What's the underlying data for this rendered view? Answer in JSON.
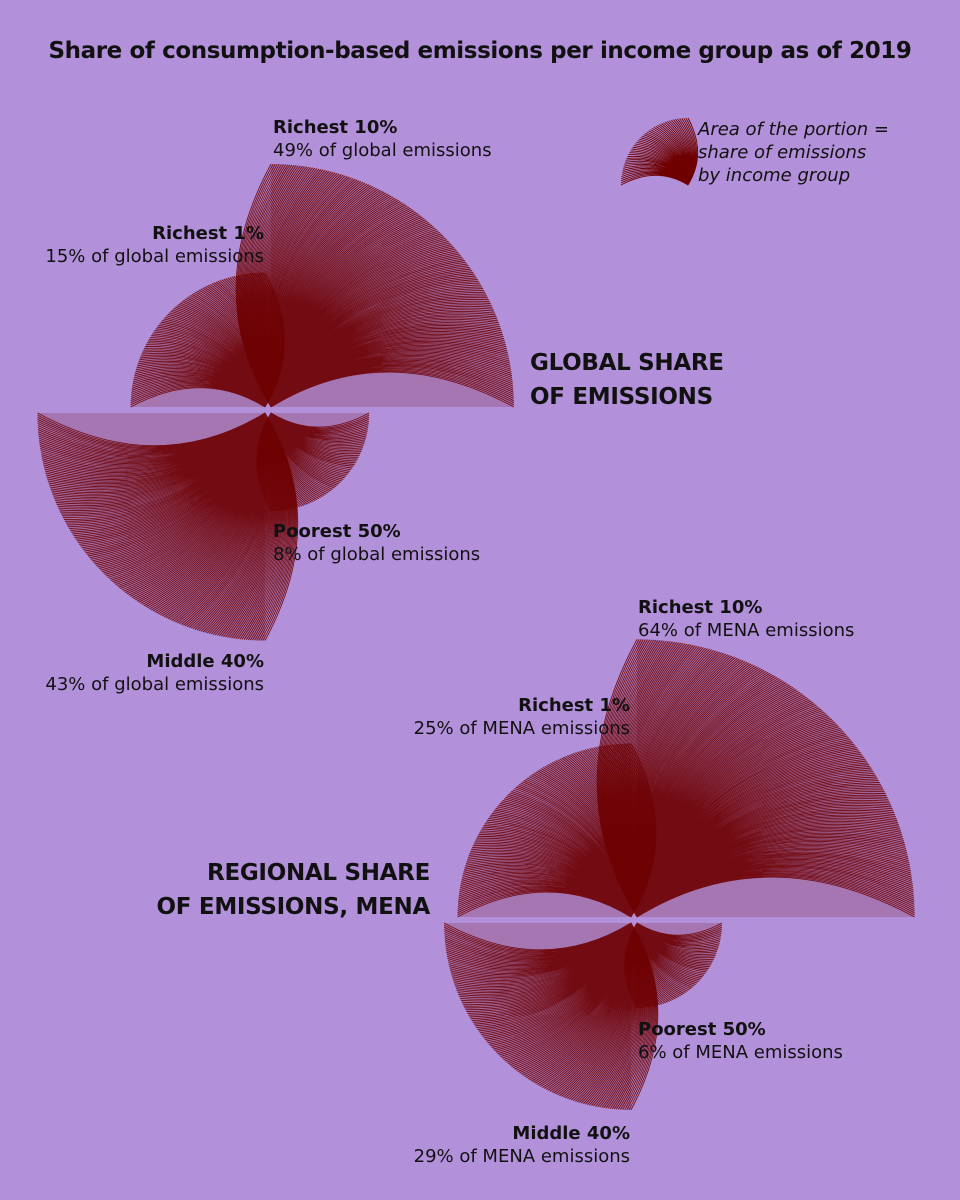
{
  "title": "Share of consumption-based emissions per income group as of 2019",
  "legend": {
    "lines": [
      "Area of the portion =",
      "share of emissions",
      "by income group"
    ]
  },
  "colors": {
    "background": "#b391da",
    "fan": "#6e0000",
    "text": "#111111"
  },
  "chart_data": [
    {
      "type": "pie",
      "heading": [
        "GLOBAL SHARE",
        "OF EMISSIONS"
      ],
      "groups": [
        {
          "label": "Richest 10%",
          "value": 49,
          "value_text": "49% of global emissions",
          "quadrant": "top-right"
        },
        {
          "label": "Richest 1%",
          "value": 15,
          "value_text": "15% of global emissions",
          "quadrant": "top-left"
        },
        {
          "label": "Middle 40%",
          "value": 43,
          "value_text": "43% of global emissions",
          "quadrant": "bottom-left"
        },
        {
          "label": "Poorest 50%",
          "value": 8,
          "value_text": "8% of global emissions",
          "quadrant": "bottom-right"
        }
      ]
    },
    {
      "type": "pie",
      "heading": [
        "REGIONAL SHARE",
        "OF EMISSIONS, MENA"
      ],
      "groups": [
        {
          "label": "Richest 10%",
          "value": 64,
          "value_text": "64% of MENA emissions",
          "quadrant": "top-right"
        },
        {
          "label": "Richest 1%",
          "value": 25,
          "value_text": "25% of MENA emissions",
          "quadrant": "top-left"
        },
        {
          "label": "Middle 40%",
          "value": 29,
          "value_text": "29% of MENA emissions",
          "quadrant": "bottom-left"
        },
        {
          "label": "Poorest 50%",
          "value": 6,
          "value_text": "6% of MENA emissions",
          "quadrant": "bottom-right"
        }
      ]
    }
  ]
}
